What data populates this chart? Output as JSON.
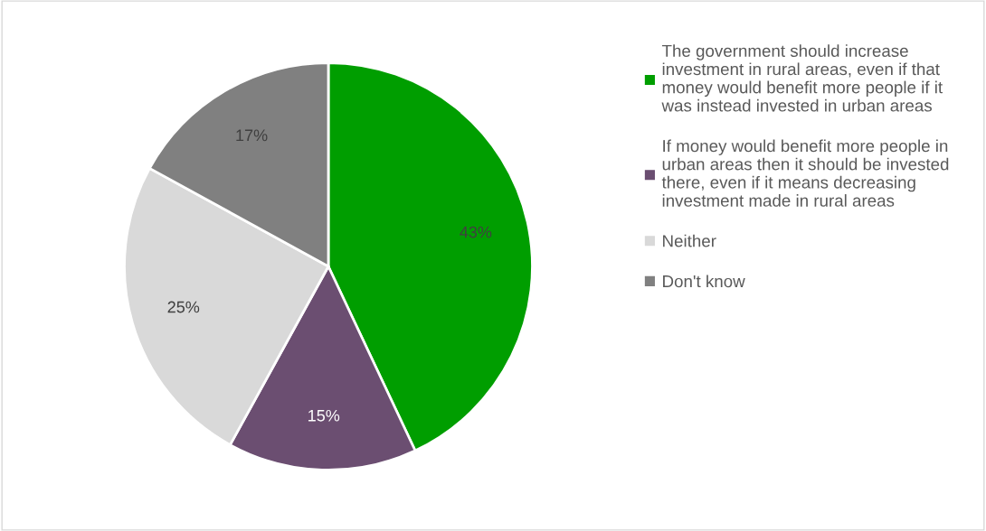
{
  "chart_data": {
    "type": "pie",
    "categories": [
      "The government should increase\ninvestment in rural areas, even if that\nmoney would benefit more people if it\nwas instead invested in urban areas",
      "If money would benefit more people in\nurban areas then it should be invested\nthere, even if it means decreasing\ninvestment made in rural areas",
      "Neither",
      "Don't know"
    ],
    "values": [
      43,
      15,
      25,
      17
    ],
    "colors": [
      "#009e00",
      "#6b4e71",
      "#d9d9d9",
      "#808080"
    ],
    "value_labels": [
      "43%",
      "15%",
      "25%",
      "17%"
    ],
    "legend": "right"
  }
}
